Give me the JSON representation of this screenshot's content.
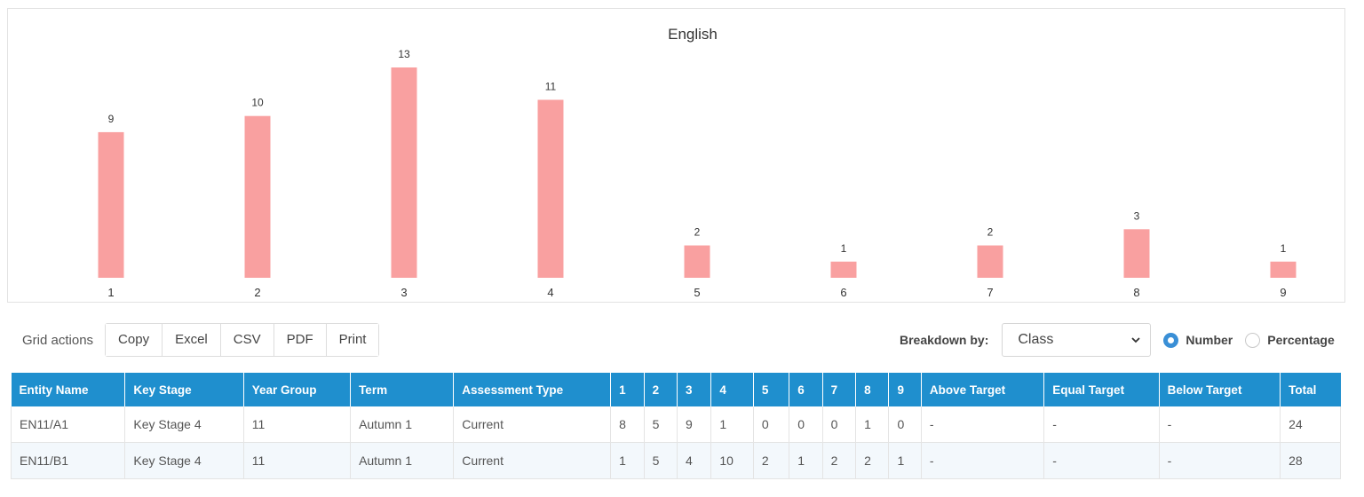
{
  "chart_data": {
    "type": "bar",
    "title": "English",
    "categories": [
      "1",
      "2",
      "3",
      "4",
      "5",
      "6",
      "7",
      "8",
      "9"
    ],
    "values": [
      9,
      10,
      13,
      11,
      2,
      1,
      2,
      3,
      1
    ],
    "ylim": [
      0,
      13
    ],
    "grid": false,
    "bar_color": "#f9a0a0"
  },
  "toolbar": {
    "label": "Grid actions",
    "buttons": [
      "Copy",
      "Excel",
      "CSV",
      "PDF",
      "Print"
    ]
  },
  "breakdown": {
    "label": "Breakdown by:",
    "selected": "Class",
    "radio_number": "Number",
    "radio_percentage": "Percentage",
    "selected_mode": "Number",
    "accent": "#3a8fd6"
  },
  "table": {
    "header_color": "#1f8fce",
    "columns": [
      "Entity Name",
      "Key Stage",
      "Year Group",
      "Term",
      "Assessment Type",
      "1",
      "2",
      "3",
      "4",
      "5",
      "6",
      "7",
      "8",
      "9",
      "Above Target",
      "Equal Target",
      "Below Target",
      "Total"
    ],
    "rows": [
      [
        "EN11/A1",
        "Key Stage 4",
        "11",
        "Autumn 1",
        "Current",
        "8",
        "5",
        "9",
        "1",
        "0",
        "0",
        "0",
        "1",
        "0",
        "-",
        "-",
        "-",
        "24"
      ],
      [
        "EN11/B1",
        "Key Stage 4",
        "11",
        "Autumn 1",
        "Current",
        "1",
        "5",
        "4",
        "10",
        "2",
        "1",
        "2",
        "2",
        "1",
        "-",
        "-",
        "-",
        "28"
      ]
    ]
  }
}
